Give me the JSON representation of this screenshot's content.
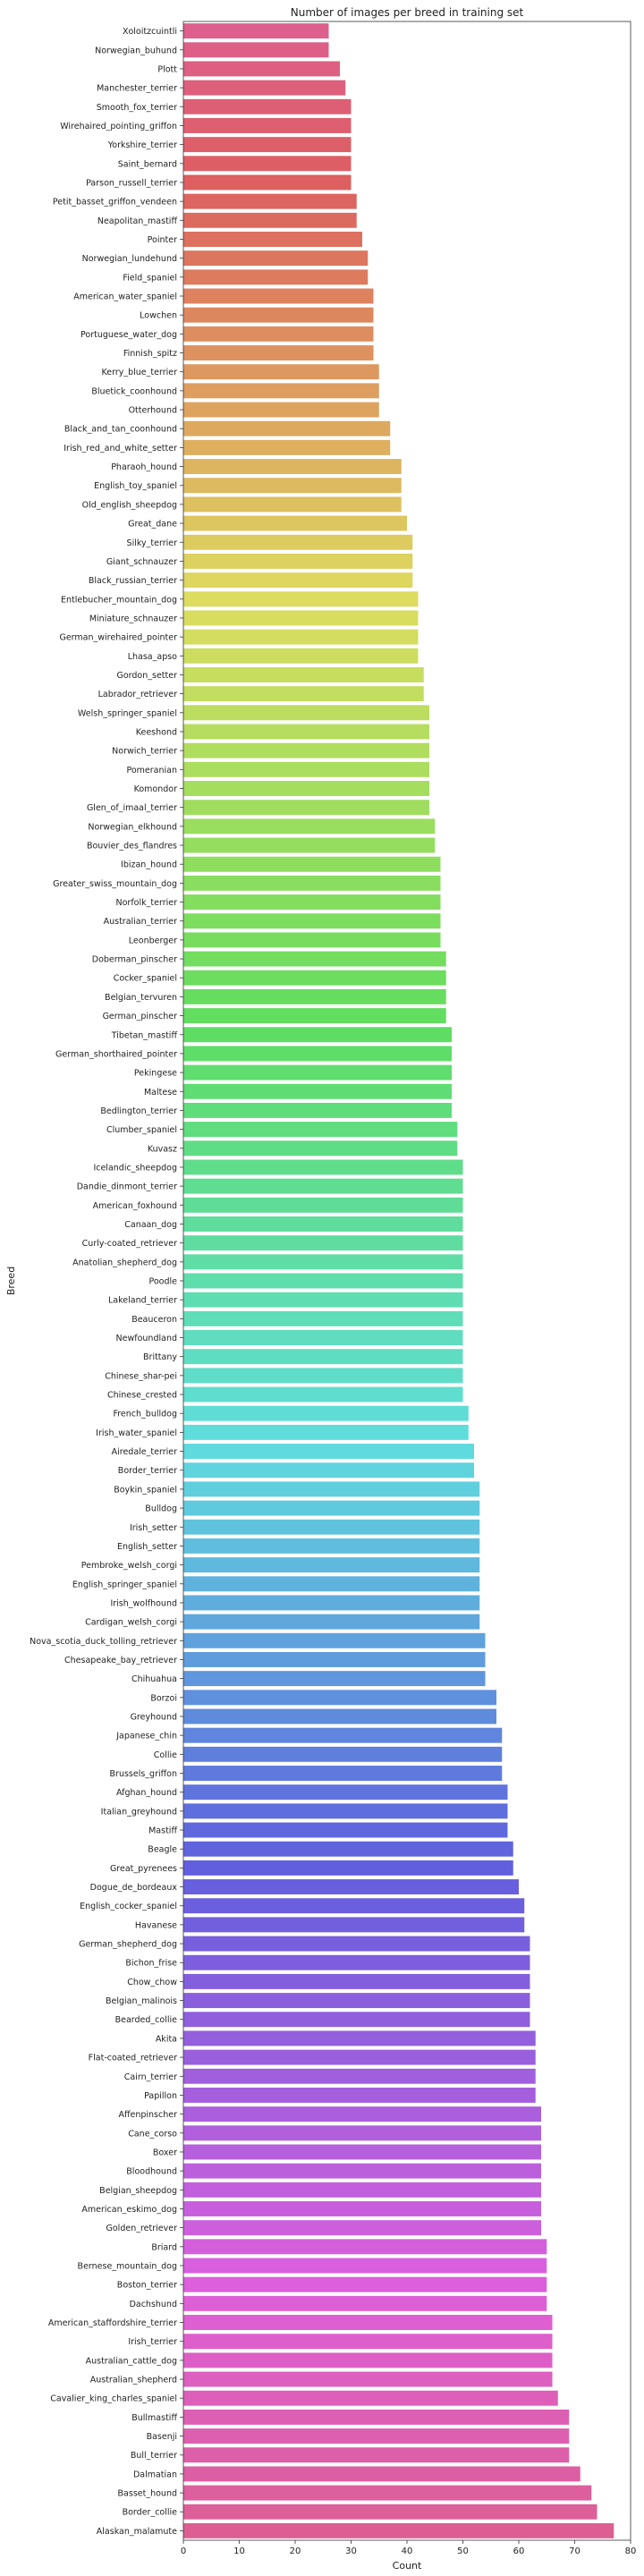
{
  "chart_data": {
    "type": "bar",
    "orientation": "horizontal",
    "title": "Number of images per breed in training set",
    "xlabel": "Count",
    "ylabel": "Breed",
    "xlim": [
      0,
      80
    ],
    "xticks": [
      0,
      10,
      20,
      30,
      40,
      50,
      60,
      70,
      80
    ],
    "grid": false,
    "categories": [
      "Xoloitzcuintli",
      "Norwegian_buhund",
      "Plott",
      "Manchester_terrier",
      "Smooth_fox_terrier",
      "Wirehaired_pointing_griffon",
      "Yorkshire_terrier",
      "Saint_bernard",
      "Parson_russell_terrier",
      "Petit_basset_griffon_vendeen",
      "Neapolitan_mastiff",
      "Pointer",
      "Norwegian_lundehund",
      "Field_spaniel",
      "American_water_spaniel",
      "Lowchen",
      "Portuguese_water_dog",
      "Finnish_spitz",
      "Kerry_blue_terrier",
      "Bluetick_coonhound",
      "Otterhound",
      "Black_and_tan_coonhound",
      "Irish_red_and_white_setter",
      "Pharaoh_hound",
      "English_toy_spaniel",
      "Old_english_sheepdog",
      "Great_dane",
      "Silky_terrier",
      "Giant_schnauzer",
      "Black_russian_terrier",
      "Entlebucher_mountain_dog",
      "Miniature_schnauzer",
      "German_wirehaired_pointer",
      "Lhasa_apso",
      "Gordon_setter",
      "Labrador_retriever",
      "Welsh_springer_spaniel",
      "Keeshond",
      "Norwich_terrier",
      "Pomeranian",
      "Komondor",
      "Glen_of_imaal_terrier",
      "Norwegian_elkhound",
      "Bouvier_des_flandres",
      "Ibizan_hound",
      "Greater_swiss_mountain_dog",
      "Norfolk_terrier",
      "Australian_terrier",
      "Leonberger",
      "Doberman_pinscher",
      "Cocker_spaniel",
      "Belgian_tervuren",
      "German_pinscher",
      "Tibetan_mastiff",
      "German_shorthaired_pointer",
      "Pekingese",
      "Maltese",
      "Bedlington_terrier",
      "Clumber_spaniel",
      "Kuvasz",
      "Icelandic_sheepdog",
      "Dandie_dinmont_terrier",
      "American_foxhound",
      "Canaan_dog",
      "Curly-coated_retriever",
      "Anatolian_shepherd_dog",
      "Poodle",
      "Lakeland_terrier",
      "Beauceron",
      "Newfoundland",
      "Brittany",
      "Chinese_shar-pei",
      "Chinese_crested",
      "French_bulldog",
      "Irish_water_spaniel",
      "Airedale_terrier",
      "Border_terrier",
      "Boykin_spaniel",
      "Bulldog",
      "Irish_setter",
      "English_setter",
      "Pembroke_welsh_corgi",
      "English_springer_spaniel",
      "Irish_wolfhound",
      "Cardigan_welsh_corgi",
      "Nova_scotia_duck_tolling_retriever",
      "Chesapeake_bay_retriever",
      "Chihuahua",
      "Borzoi",
      "Greyhound",
      "Japanese_chin",
      "Collie",
      "Brussels_griffon",
      "Afghan_hound",
      "Italian_greyhound",
      "Mastiff",
      "Beagle",
      "Great_pyrenees",
      "Dogue_de_bordeaux",
      "English_cocker_spaniel",
      "Havanese",
      "German_shepherd_dog",
      "Bichon_frise",
      "Chow_chow",
      "Belgian_malinois",
      "Bearded_collie",
      "Akita",
      "Flat-coated_retriever",
      "Cairn_terrier",
      "Papillon",
      "Affenpinscher",
      "Cane_corso",
      "Boxer",
      "Bloodhound",
      "Belgian_sheepdog",
      "American_eskimo_dog",
      "Golden_retriever",
      "Briard",
      "Bernese_mountain_dog",
      "Boston_terrier",
      "Dachshund",
      "American_staffordshire_terrier",
      "Irish_terrier",
      "Australian_cattle_dog",
      "Australian_shepherd",
      "Cavalier_king_charles_spaniel",
      "Bullmastiff",
      "Basenji",
      "Bull_terrier",
      "Dalmatian",
      "Basset_hound",
      "Border_collie",
      "Alaskan_malamute"
    ],
    "values": [
      26,
      26,
      28,
      29,
      30,
      30,
      30,
      30,
      30,
      31,
      31,
      32,
      33,
      33,
      34,
      34,
      34,
      34,
      35,
      35,
      35,
      37,
      37,
      39,
      39,
      39,
      40,
      41,
      41,
      41,
      42,
      42,
      42,
      42,
      43,
      43,
      44,
      44,
      44,
      44,
      44,
      44,
      45,
      45,
      46,
      46,
      46,
      46,
      46,
      47,
      47,
      47,
      47,
      48,
      48,
      48,
      48,
      48,
      49,
      49,
      50,
      50,
      50,
      50,
      50,
      50,
      50,
      50,
      50,
      50,
      50,
      50,
      50,
      51,
      51,
      52,
      52,
      53,
      53,
      53,
      53,
      53,
      53,
      53,
      53,
      54,
      54,
      54,
      56,
      56,
      57,
      57,
      57,
      58,
      58,
      58,
      59,
      59,
      60,
      61,
      61,
      62,
      62,
      62,
      62,
      62,
      63,
      63,
      63,
      63,
      64,
      64,
      64,
      64,
      64,
      64,
      64,
      65,
      65,
      65,
      65,
      66,
      66,
      66,
      66,
      67,
      69,
      69,
      69,
      71,
      73,
      74,
      77
    ],
    "palette": "husl"
  }
}
